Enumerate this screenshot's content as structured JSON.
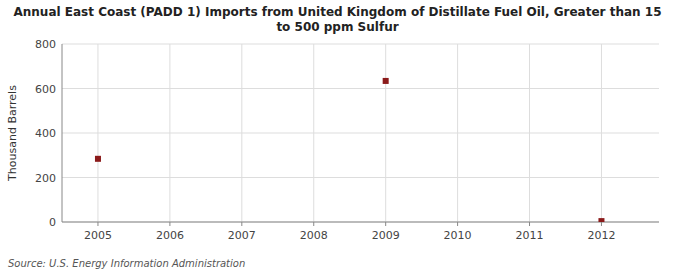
{
  "chart_data": {
    "type": "scatter",
    "title": "Annual East Coast (PADD 1) Imports from United Kingdom of Distillate Fuel Oil, Greater than 15\nto 500 ppm Sulfur",
    "ylabel": "Thousand Barrels",
    "source": "Source: U.S. Energy Information Administration",
    "x": [
      2005,
      2009,
      2012
    ],
    "values": [
      284,
      634,
      4
    ],
    "color": "#8b1a1a",
    "marker": "square",
    "xlim": [
      2004.5,
      2012.8
    ],
    "ylim": [
      0,
      800
    ],
    "xticks": [
      2005,
      2006,
      2007,
      2008,
      2009,
      2010,
      2011,
      2012
    ],
    "yticks": [
      0,
      200,
      400,
      600,
      800
    ],
    "grid": true
  }
}
